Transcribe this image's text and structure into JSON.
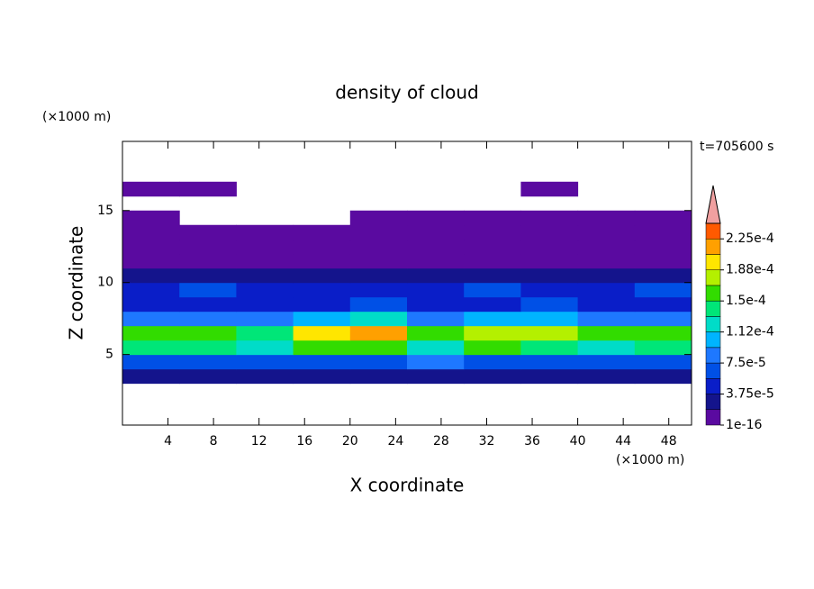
{
  "chart_data": {
    "type": "contour",
    "title": "density of cloud",
    "xlabel": "X coordinate",
    "ylabel": "Z coordinate",
    "xunit": "(×1000 m)",
    "yunit": "(×1000 m)",
    "annotation": "t=705600 s",
    "xlim": [
      0,
      50
    ],
    "ylim": [
      0.1,
      19.8
    ],
    "xticks": [
      4,
      8,
      12,
      16,
      20,
      24,
      28,
      32,
      36,
      40,
      44,
      48
    ],
    "yticks": [
      5,
      10,
      15
    ],
    "x": [
      2.5,
      7.5,
      12.5,
      17.5,
      22.5,
      27.5,
      32.5,
      37.5,
      42.5,
      47.5
    ],
    "y": [
      3.5,
      4.5,
      5.5,
      6.5,
      7.5,
      8.5,
      9.5,
      10.5,
      11.5,
      12.5,
      13.5,
      14.5,
      15.5,
      16.5
    ],
    "values": [
      [
        2e-05,
        2.5e-05,
        2e-05,
        2.2e-05,
        2e-05,
        3e-05,
        2.4e-05,
        2e-05,
        2.2e-05,
        2e-05
      ],
      [
        6.5e-05,
        6e-05,
        7e-05,
        6.5e-05,
        6e-05,
        8e-05,
        6.5e-05,
        6e-05,
        7e-05,
        6.5e-05
      ],
      [
        0.000145,
        0.000135,
        0.00013,
        0.00015,
        0.00016,
        0.00012,
        0.00015,
        0.000145,
        0.00013,
        0.00014
      ],
      [
        0.000165,
        0.00015,
        0.00014,
        0.00019,
        0.00021,
        0.00016,
        0.000175,
        0.00017,
        0.00015,
        0.00016
      ],
      [
        9e-05,
        8e-05,
        7.5e-05,
        0.00011,
        0.00012,
        8e-05,
        9.5e-05,
        0.0001,
        8e-05,
        8.5e-05
      ],
      [
        5e-05,
        5.5e-05,
        4.5e-05,
        5e-05,
        6e-05,
        5e-05,
        5.5e-05,
        6e-05,
        4.5e-05,
        5e-05
      ],
      [
        4e-05,
        6e-05,
        4e-05,
        3.8e-05,
        4.5e-05,
        4e-05,
        6.5e-05,
        4.5e-05,
        4e-05,
        6e-05
      ],
      [
        2.5e-05,
        2e-05,
        3e-05,
        2e-05,
        2.5e-05,
        2e-05,
        2.5e-05,
        3e-05,
        2e-05,
        2.5e-05
      ],
      [
        1e-05,
        1.5e-05,
        1e-05,
        1.2e-05,
        1e-05,
        1.5e-05,
        1e-05,
        1.2e-05,
        1e-05,
        1.5e-05
      ],
      [
        5e-06,
        5e-06,
        4e-06,
        5e-06,
        6e-06,
        5e-06,
        5e-06,
        4e-06,
        5e-06,
        5e-06
      ],
      [
        3e-06,
        3e-06,
        2e-06,
        2e-06,
        3e-06,
        3e-06,
        3e-06,
        2e-06,
        3e-06,
        3e-06
      ],
      [
        2e-06,
        null,
        null,
        null,
        2e-06,
        2e-06,
        2e-06,
        2e-06,
        2e-06,
        1e-06
      ],
      [
        null,
        null,
        null,
        null,
        null,
        null,
        null,
        null,
        null,
        null
      ],
      [
        1e-06,
        1e-06,
        null,
        null,
        null,
        null,
        null,
        1e-06,
        null,
        null
      ]
    ],
    "levels": [
      1e-16,
      1.875e-05,
      3.75e-05,
      5.625e-05,
      7.5e-05,
      9.375e-05,
      0.0001125,
      0.00013125,
      0.00015,
      0.00016875,
      0.0001875,
      0.00020625,
      0.000225,
      0.00024375
    ],
    "colors": [
      "#5a0aa0",
      "#14148c",
      "#0a1ec8",
      "#0050e6",
      "#1e78ff",
      "#00b4ff",
      "#00dcc8",
      "#00e678",
      "#32dc00",
      "#b4f000",
      "#ffe600",
      "#ffa000",
      "#ff5a00"
    ],
    "extend_color": "#f0a0a0",
    "colorbar_ticks": [
      {
        "value": 1e-16,
        "label": "1e-16"
      },
      {
        "value": 3.75e-05,
        "label": "3.75e-5"
      },
      {
        "value": 7.5e-05,
        "label": "7.5e-5"
      },
      {
        "value": 0.0001125,
        "label": "1.12e-4"
      },
      {
        "value": 0.00015,
        "label": "1.5e-4"
      },
      {
        "value": 0.0001875,
        "label": "1.88e-4"
      },
      {
        "value": 0.000225,
        "label": "2.25e-4"
      }
    ]
  }
}
